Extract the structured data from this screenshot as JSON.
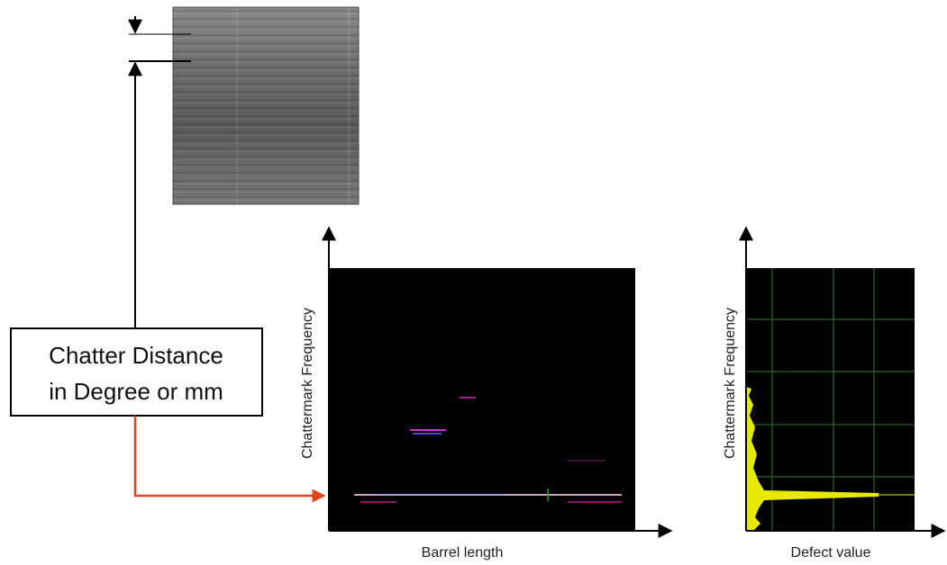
{
  "callout": {
    "lines": [
      "Chatter Distance",
      "in Degree or mm"
    ]
  },
  "left_plot": {
    "y_label": "Chattermark Frequency",
    "x_label": "Barrel length"
  },
  "right_plot": {
    "y_label": "Chattermark Frequency",
    "x_label": "Defect value"
  }
}
